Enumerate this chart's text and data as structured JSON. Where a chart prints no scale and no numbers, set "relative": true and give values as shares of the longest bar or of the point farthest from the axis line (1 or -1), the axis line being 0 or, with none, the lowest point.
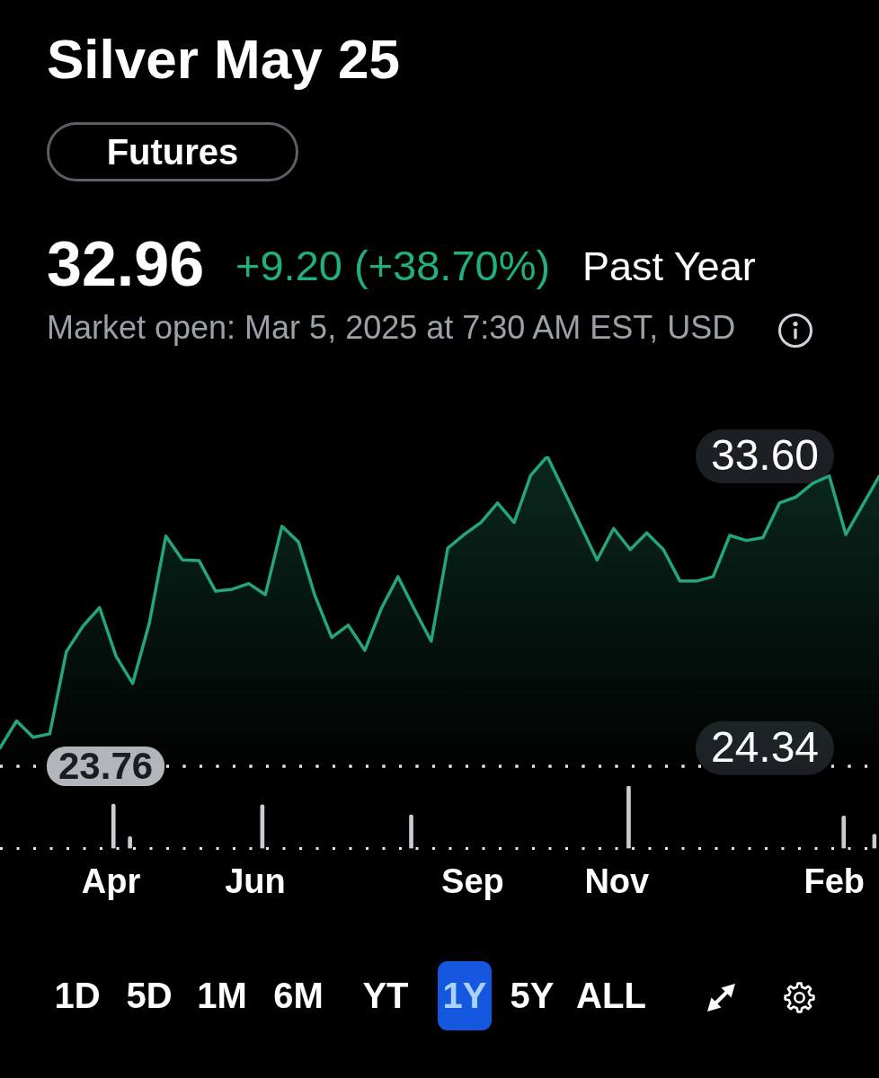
{
  "chart_data": [
    {
      "type": "area",
      "title": "Silver May 25",
      "annotations": [
        "Futures",
        "32.96",
        "+9.20 (+38.70%)",
        "Past Year",
        "Market open: Mar 5, 2025 at 7:30 AM EST, USD"
      ],
      "x": [
        "2024-02-28",
        "2024-03-06",
        "2024-03-13",
        "2024-03-20",
        "2024-03-27",
        "2024-04-03",
        "2024-04-10",
        "2024-04-17",
        "2024-04-24",
        "2024-05-01",
        "2024-05-08",
        "2024-05-15",
        "2024-05-22",
        "2024-05-29",
        "2024-06-05",
        "2024-06-12",
        "2024-06-19",
        "2024-06-26",
        "2024-07-03",
        "2024-07-10",
        "2024-07-17",
        "2024-07-24",
        "2024-07-31",
        "2024-08-07",
        "2024-08-14",
        "2024-08-21",
        "2024-08-28",
        "2024-09-04",
        "2024-09-11",
        "2024-09-18",
        "2024-09-25",
        "2024-10-02",
        "2024-10-09",
        "2024-10-16",
        "2024-10-23",
        "2024-10-30",
        "2024-11-06",
        "2024-11-13",
        "2024-11-20",
        "2024-11-27",
        "2024-12-04",
        "2024-12-11",
        "2024-12-18",
        "2024-12-25",
        "2025-01-01",
        "2025-01-08",
        "2025-01-15",
        "2025-01-22",
        "2025-01-29",
        "2025-02-05",
        "2025-02-12",
        "2025-02-19",
        "2025-02-26",
        "2025-03-05"
      ],
      "values": [
        24.34,
        25.2,
        24.68,
        24.79,
        27.4,
        28.21,
        28.8,
        27.25,
        26.39,
        28.3,
        31.07,
        30.31,
        30.29,
        29.32,
        29.38,
        29.56,
        29.21,
        31.38,
        30.88,
        29.16,
        27.85,
        28.24,
        27.44,
        28.78,
        29.78,
        28.73,
        27.73,
        30.69,
        31.12,
        31.5,
        32.12,
        31.5,
        33.0,
        33.6,
        32.51,
        31.41,
        30.31,
        31.31,
        30.64,
        31.17,
        30.64,
        29.64,
        29.64,
        29.78,
        31.09,
        30.93,
        31.02,
        32.12,
        32.31,
        32.74,
        32.98,
        31.12,
        32.04,
        32.96
      ],
      "color": "#25a57c",
      "xlim": [
        "2024-02-28",
        "2025-03-05"
      ],
      "ylim": [
        23.76,
        33.6
      ],
      "yticks": [
        {
          "value": 24.34,
          "label": "24.34"
        },
        {
          "value": 33.6,
          "label": "33.60"
        }
      ],
      "ref_lines": [
        {
          "axis": "y",
          "value": 23.76,
          "label": "23.76",
          "color": "#e2e4e7",
          "line_style": "dotted"
        }
      ],
      "tick_labels": "y"
    },
    {
      "type": "bar",
      "relative": true,
      "x": [
        "2024-04-16",
        "2024-04-23",
        "2024-06-18",
        "2024-08-20",
        "2024-11-20",
        "2025-02-19",
        "2025-03-04"
      ],
      "values": [
        0.71,
        0.19,
        0.7,
        0.54,
        1,
        0.52,
        0.23
      ],
      "color": "#c9ccd1",
      "xlim": [
        "2024-02-28",
        "2025-03-05"
      ],
      "xticks": [
        {
          "value": "2024-04-15",
          "label": "Apr"
        },
        {
          "value": "2024-06-15",
          "label": "Jun"
        },
        {
          "value": "2024-09-15",
          "label": "Sep"
        },
        {
          "value": "2024-11-15",
          "label": "Nov"
        },
        {
          "value": "2025-02-15",
          "label": "Feb"
        }
      ],
      "tick_labels": "x",
      "annotations": [
        "1D",
        "5D",
        "1M",
        "6M",
        "YT",
        "1Y",
        "5Y",
        "ALL"
      ]
    }
  ]
}
